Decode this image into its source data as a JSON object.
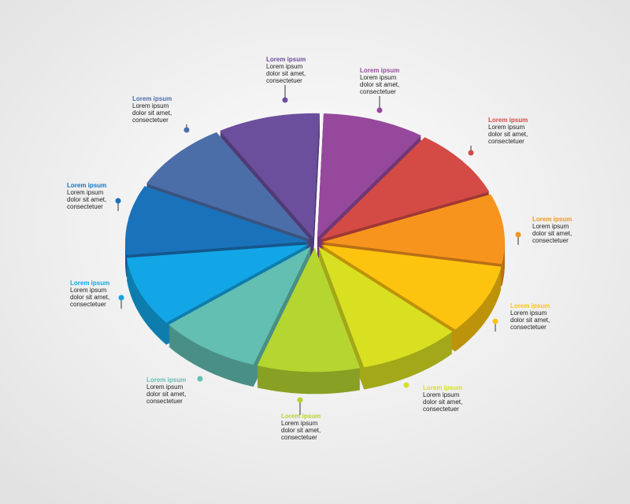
{
  "segments": [
    {
      "title": "Lorem ipsum",
      "lines": [
        "Lorem ipsum",
        "dolor sit amet,",
        "consectetuer"
      ],
      "color": "#96499c"
    },
    {
      "title": "Lorem ipsum",
      "lines": [
        "Lorem ipsum",
        "dolor sit amet,",
        "consectetuer"
      ],
      "color": "#d44a45"
    },
    {
      "title": "Lorem ipsum",
      "lines": [
        "Lorem ipsum",
        "dolor sit amet,",
        "consectetuer"
      ],
      "color": "#f7941d"
    },
    {
      "title": "Lorem ipsum",
      "lines": [
        "Lorem ipsum",
        "dolor sit amet,",
        "consectetuer"
      ],
      "color": "#fcc40f"
    },
    {
      "title": "Lorem ipsum",
      "lines": [
        "Lorem ipsum",
        "dolor sit amet,",
        "consectetuer"
      ],
      "color": "#d8e021"
    },
    {
      "title": "Lorem ipsum",
      "lines": [
        "Lorem ipsum",
        "dolor sit amet,",
        "consectetuer"
      ],
      "color": "#b5d530"
    },
    {
      "title": "Lorem ipsum",
      "lines": [
        "Lorem ipsum",
        "dolor sit amet,",
        "consectetuer"
      ],
      "color": "#62bfb1"
    },
    {
      "title": "Lorem ipsum",
      "lines": [
        "Lorem ipsum",
        "dolor sit amet,",
        "consectetuer"
      ],
      "color": "#12a6e6"
    },
    {
      "title": "Lorem ipsum",
      "lines": [
        "Lorem ipsum",
        "dolor sit amet,",
        "consectetuer"
      ],
      "color": "#1a72bb"
    },
    {
      "title": "Lorem ipsum",
      "lines": [
        "Lorem ipsum",
        "dolor sit amet,",
        "consectetuer"
      ],
      "color": "#4c6ea8"
    },
    {
      "title": "Lorem ipsum",
      "lines": [
        "Lorem ipsum",
        "dolor sit amet,",
        "consectetuer"
      ],
      "color": "#6b4f9c"
    }
  ]
}
